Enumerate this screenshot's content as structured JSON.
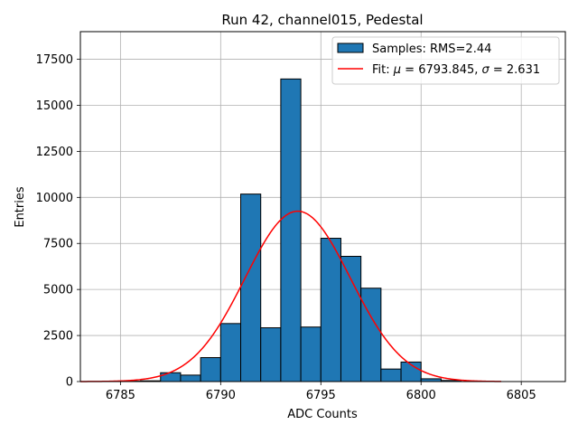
{
  "chart_data": {
    "type": "bar",
    "title": "Run 42, channel015, Pedestal",
    "xlabel": "ADC Counts",
    "ylabel": "Entries",
    "xlim": [
      6783.0,
      6807.2
    ],
    "ylim": [
      0,
      19000
    ],
    "xticks": [
      6785,
      6790,
      6795,
      6800,
      6805
    ],
    "yticks": [
      0,
      2500,
      5000,
      7500,
      10000,
      12500,
      15000,
      17500
    ],
    "grid": true,
    "legend_position": "top-right",
    "bar_color": "#1f77b4",
    "fit_color": "#ff0000",
    "bins": [
      {
        "lo": 6785,
        "hi": 6786,
        "value": 20
      },
      {
        "lo": 6786,
        "hi": 6787,
        "value": 40
      },
      {
        "lo": 6787,
        "hi": 6788,
        "value": 480
      },
      {
        "lo": 6788,
        "hi": 6789,
        "value": 350
      },
      {
        "lo": 6789,
        "hi": 6790,
        "value": 1300
      },
      {
        "lo": 6790,
        "hi": 6791,
        "value": 3150
      },
      {
        "lo": 6791,
        "hi": 6792,
        "value": 10180
      },
      {
        "lo": 6792,
        "hi": 6793,
        "value": 2920
      },
      {
        "lo": 6793,
        "hi": 6794,
        "value": 16430
      },
      {
        "lo": 6794,
        "hi": 6795,
        "value": 2960
      },
      {
        "lo": 6795,
        "hi": 6796,
        "value": 7780
      },
      {
        "lo": 6796,
        "hi": 6797,
        "value": 6800
      },
      {
        "lo": 6797,
        "hi": 6798,
        "value": 5070
      },
      {
        "lo": 6798,
        "hi": 6799,
        "value": 680
      },
      {
        "lo": 6799,
        "hi": 6800,
        "value": 1060
      },
      {
        "lo": 6800,
        "hi": 6801,
        "value": 150
      },
      {
        "lo": 6801,
        "hi": 6802,
        "value": 60
      }
    ],
    "fit": {
      "mu": 6793.845,
      "sigma": 2.631,
      "amplitude": 9250,
      "x_range": [
        6783,
        6804
      ]
    },
    "series": [
      {
        "name": "Samples: RMS=2.44",
        "kind": "histogram"
      },
      {
        "name": "Fit: μ = 6793.845, σ = 2.631",
        "kind": "line"
      }
    ],
    "legend": {
      "samples_label": "Samples: RMS=2.44",
      "fit_prefix": "Fit: ",
      "mu_symbol": "μ",
      "mu_value": " = 6793.845, ",
      "sigma_symbol": "σ",
      "sigma_value": " = 2.631"
    }
  }
}
